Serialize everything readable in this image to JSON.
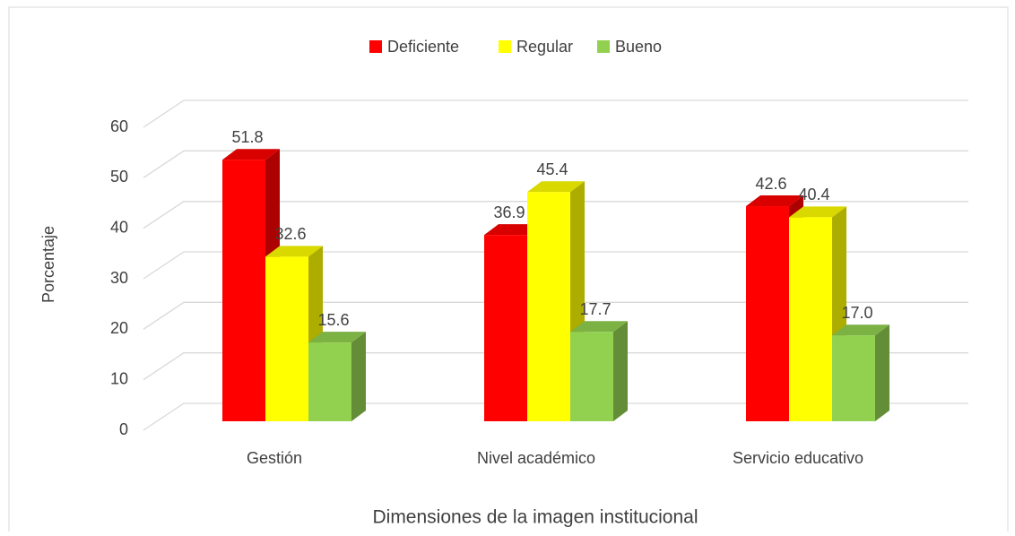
{
  "chart_data": {
    "type": "bar3d",
    "axis_labels": {
      "y": "Porcentaje",
      "x": "Dimensiones de la imagen institucional"
    },
    "categories": [
      "Gestión",
      "Nivel académico",
      "Servicio educativo"
    ],
    "series": [
      {
        "name": "Deficiente",
        "color": "#ff0000",
        "values": [
          51.8,
          36.9,
          42.6
        ],
        "value_labels": [
          "51.8",
          "36.9",
          "42.6"
        ]
      },
      {
        "name": "Regular",
        "color": "#ffff00",
        "values": [
          32.6,
          45.4,
          40.4
        ],
        "value_labels": [
          "32.6",
          "45.4",
          "40.4"
        ]
      },
      {
        "name": "Bueno",
        "color": "#92d050",
        "values": [
          15.6,
          17.7,
          17.0
        ],
        "value_labels": [
          "15.6",
          "17.7",
          "17.0"
        ]
      }
    ],
    "ylim": [
      0,
      60
    ],
    "yticks": [
      0,
      10,
      20,
      30,
      40,
      50,
      60
    ],
    "grid": true,
    "legend": "top"
  }
}
